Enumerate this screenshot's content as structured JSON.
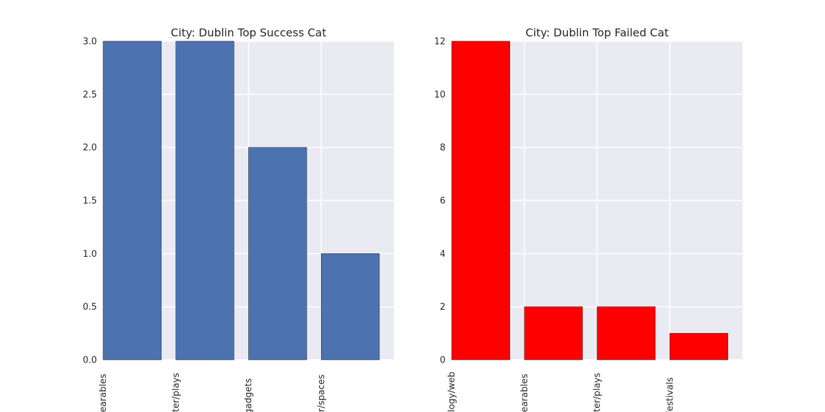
{
  "chart_data": [
    {
      "type": "bar",
      "title": "City: Dublin Top Success Cat",
      "categories": [
        "technology/wearables",
        "theater/plays",
        "technology/gadgets",
        "theater/spaces"
      ],
      "category_labels_visible": [
        "vearables",
        "ater/plays",
        "/gadgets",
        "er/spaces"
      ],
      "values": [
        3,
        3,
        2,
        1
      ],
      "xlabel": "",
      "ylabel": "",
      "ylim": [
        0,
        3.0
      ],
      "yticks": [
        "0.0",
        "0.5",
        "1.0",
        "1.5",
        "2.0",
        "2.5",
        "3.0"
      ],
      "bar_color": "#4c72b0",
      "grid": true,
      "legend": "none"
    },
    {
      "type": "bar",
      "title": "City: Dublin Top Failed Cat",
      "categories": [
        "technology/web",
        "technology/wearables",
        "theater/plays",
        "music/festivals"
      ],
      "category_labels_visible": [
        "ology/web",
        "vearables",
        "ater/plays",
        "/festivals"
      ],
      "values": [
        12,
        2,
        2,
        1
      ],
      "xlabel": "",
      "ylabel": "",
      "ylim": [
        0,
        12
      ],
      "yticks": [
        "0",
        "2",
        "4",
        "6",
        "8",
        "10",
        "12"
      ],
      "bar_color": "#ff0000",
      "grid": true,
      "legend": "none"
    }
  ],
  "colors": {
    "axes_background": "#eaeaf2",
    "grid": "#ffffff",
    "text": "#262626"
  }
}
